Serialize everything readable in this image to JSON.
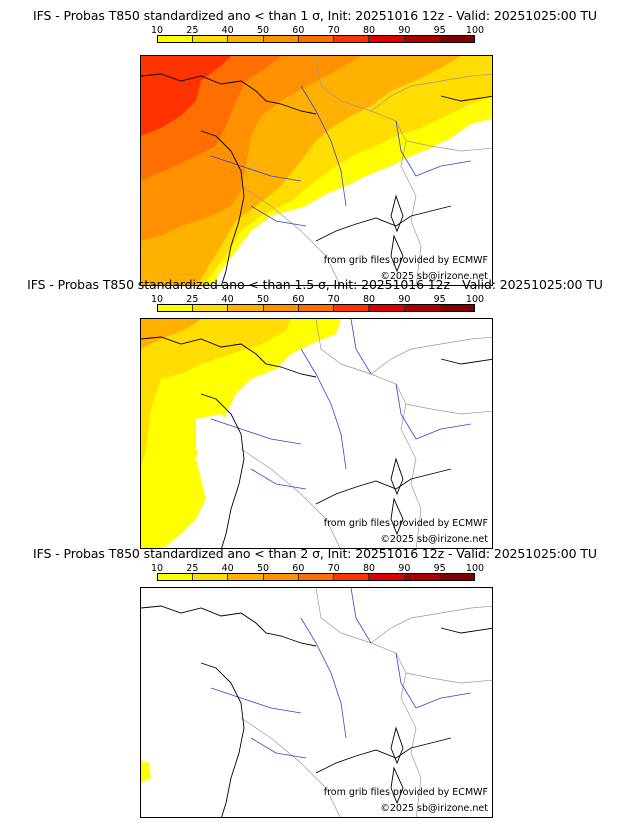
{
  "colorbar": {
    "ticks": [
      "10",
      "25",
      "40",
      "50",
      "60",
      "70",
      "80",
      "90",
      "95",
      "100"
    ],
    "colors": [
      "#ffff00",
      "#ffdd00",
      "#ffb000",
      "#ff9000",
      "#ff6e00",
      "#ff3300",
      "#dd0000",
      "#aa0000",
      "#800000"
    ]
  },
  "panels": [
    {
      "title": "IFS - Probas T850  standardized ano < than 1 σ, Init: 20251016 12z - Valid: 20251025:00 TU",
      "source": "from grib files provided by ECMWF",
      "copyright": "©2025 sb@irizone.net"
    },
    {
      "title": "IFS - Probas T850  standardized ano < than 1.5 σ, Init: 20251016 12z - Valid: 20251025:00 TU",
      "source": "from grib files provided by ECMWF",
      "copyright": "©2025 sb@irizone.net"
    },
    {
      "title": "IFS - Probas T850  standardized ano < than 2 σ, Init: 20251016 12z - Valid: 20251025:00 TU",
      "source": "from grib files provided by ECMWF",
      "copyright": "©2025 sb@irizone.net"
    }
  ]
}
